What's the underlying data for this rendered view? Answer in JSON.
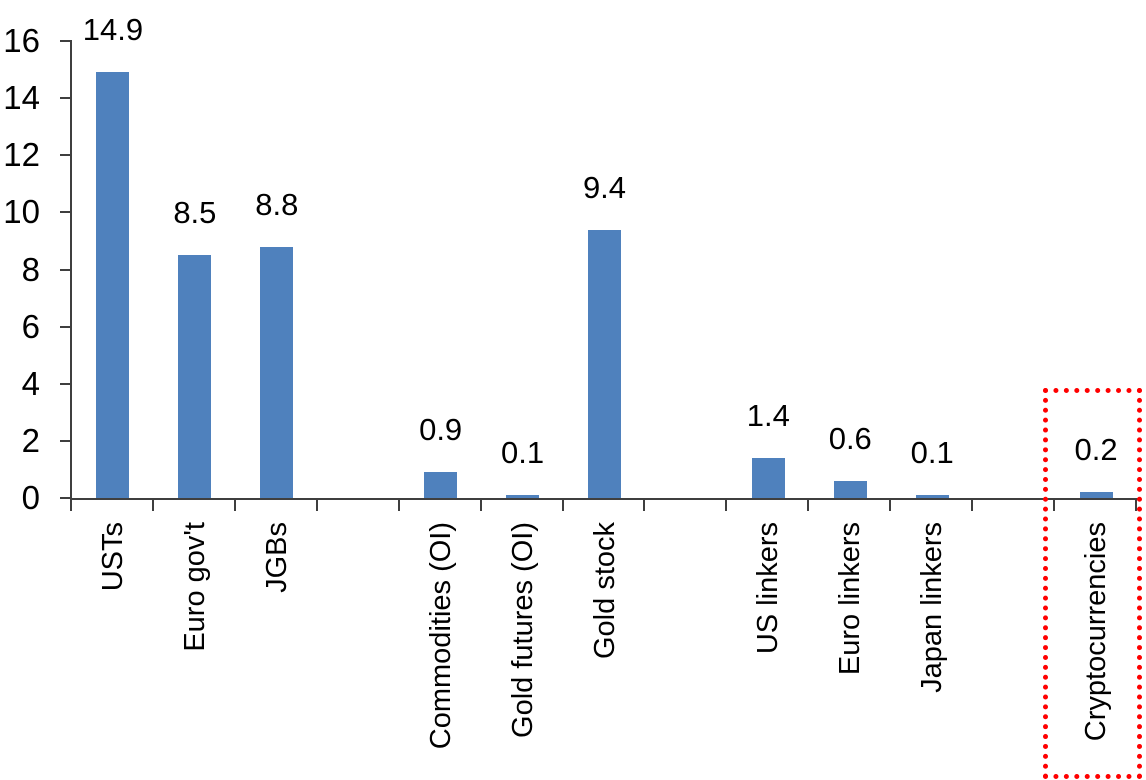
{
  "chart_data": {
    "type": "bar",
    "title": "",
    "xlabel": "",
    "ylabel": "",
    "grid": false,
    "legend_position": "none",
    "y_axis": {
      "min": 0,
      "max": 16,
      "step": 2,
      "tick_labels": [
        "0",
        "2",
        "4",
        "6",
        "8",
        "10",
        "12",
        "14",
        "16"
      ]
    },
    "slot_count": 13,
    "bars": [
      {
        "label": "USTs",
        "value": 14.9,
        "display": "14.9",
        "slot": 0,
        "highlighted": false
      },
      {
        "label": "Euro gov't",
        "value": 8.5,
        "display": "8.5",
        "slot": 1,
        "highlighted": false
      },
      {
        "label": "JGBs",
        "value": 8.8,
        "display": "8.8",
        "slot": 2,
        "highlighted": false
      },
      {
        "label": "Commodities (OI)",
        "value": 0.9,
        "display": "0.9",
        "slot": 4,
        "highlighted": false
      },
      {
        "label": "Gold futures (OI)",
        "value": 0.1,
        "display": "0.1",
        "slot": 5,
        "highlighted": false
      },
      {
        "label": "Gold stock",
        "value": 9.4,
        "display": "9.4",
        "slot": 6,
        "highlighted": false
      },
      {
        "label": "US linkers",
        "value": 1.4,
        "display": "1.4",
        "slot": 8,
        "highlighted": false
      },
      {
        "label": "Euro linkers",
        "value": 0.6,
        "display": "0.6",
        "slot": 9,
        "highlighted": false
      },
      {
        "label": "Japan linkers",
        "value": 0.1,
        "display": "0.1",
        "slot": 10,
        "highlighted": false
      },
      {
        "label": "Cryptocurrencies",
        "value": 0.2,
        "display": "0.2",
        "slot": 12,
        "highlighted": true
      }
    ],
    "colors": {
      "bar": "#4F81BD",
      "axis": "#3f3f3f",
      "text": "#000000",
      "highlight_border": "#FF0000"
    },
    "highlight": {
      "target": "Cryptocurrencies",
      "style": "red-dotted-rectangle"
    }
  }
}
